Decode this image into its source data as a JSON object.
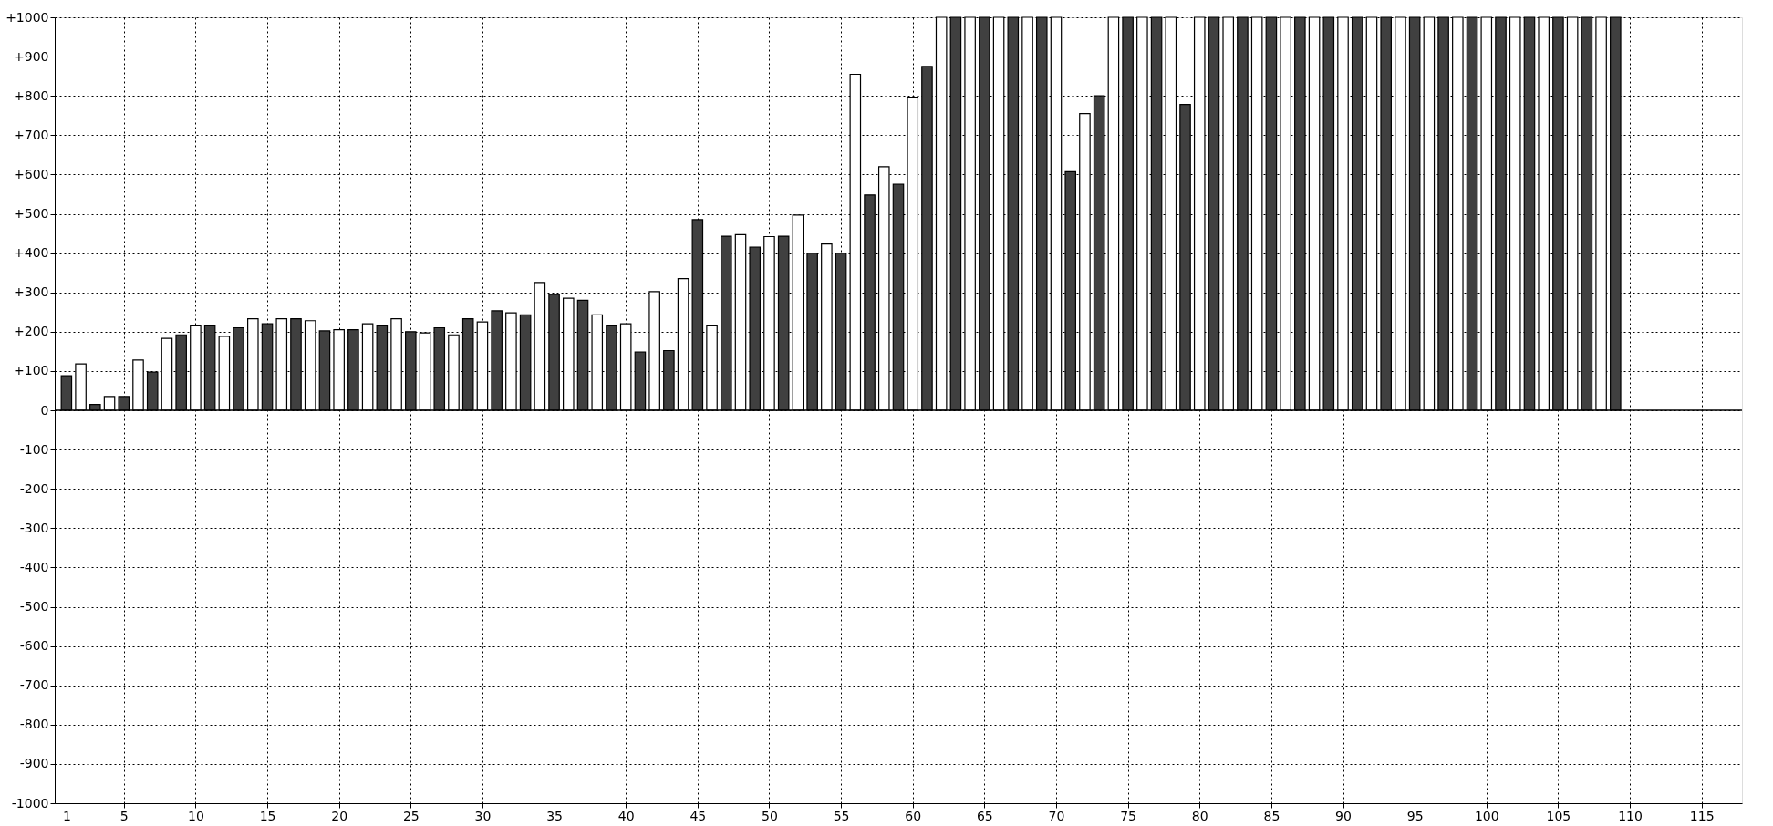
{
  "chart_data": {
    "type": "bar",
    "x": [
      1,
      2,
      3,
      4,
      5,
      6,
      7,
      8,
      9,
      10,
      11,
      12,
      13,
      14,
      15,
      16,
      17,
      18,
      19,
      20,
      21,
      22,
      23,
      24,
      25,
      26,
      27,
      28,
      29,
      30,
      31,
      32,
      33,
      34,
      35,
      36,
      37,
      38,
      39,
      40,
      41,
      42,
      43,
      44,
      45,
      46,
      47,
      48,
      49,
      50,
      51,
      52,
      53,
      54,
      55,
      56,
      57,
      58,
      59,
      60,
      61,
      62,
      63,
      64,
      65,
      66,
      67,
      68,
      69,
      70,
      71,
      72,
      73,
      74,
      75,
      76,
      77,
      78,
      79,
      80,
      81,
      82,
      83,
      84,
      85,
      86,
      87,
      88,
      89,
      90,
      91,
      92,
      93,
      94,
      95,
      96,
      97,
      98,
      99,
      100,
      101,
      102,
      103,
      104,
      105,
      106,
      107,
      108,
      109
    ],
    "values": [
      88,
      118,
      15,
      35,
      35,
      128,
      97,
      183,
      192,
      215,
      215,
      188,
      210,
      233,
      220,
      233,
      233,
      228,
      202,
      205,
      205,
      220,
      215,
      233,
      200,
      197,
      210,
      192,
      233,
      225,
      253,
      248,
      243,
      325,
      295,
      285,
      280,
      243,
      215,
      220,
      148,
      302,
      152,
      335,
      485,
      215,
      443,
      447,
      415,
      442,
      443,
      497,
      400,
      423,
      400,
      855,
      548,
      620,
      575,
      797,
      875,
      1000,
      1000,
      1000,
      1000,
      1000,
      1000,
      1000,
      1000,
      1000,
      607,
      755,
      800,
      1000,
      1000,
      1000,
      1000,
      1000,
      778,
      1000,
      1000,
      1000,
      1000,
      1000,
      1000,
      1000,
      1000,
      1000,
      1000,
      1000,
      1000,
      1000,
      1000,
      1000,
      1000,
      1000,
      1000,
      1000,
      1000,
      1000,
      1000,
      1000,
      1000,
      1000,
      1000,
      1000,
      1000,
      1000,
      1000
    ],
    "colors": [
      "#404040",
      "#ffffff",
      "#404040",
      "#ffffff",
      "#404040",
      "#ffffff",
      "#404040",
      "#ffffff",
      "#404040",
      "#ffffff",
      "#404040",
      "#ffffff",
      "#404040",
      "#ffffff",
      "#404040",
      "#ffffff",
      "#404040",
      "#ffffff",
      "#404040",
      "#ffffff",
      "#404040",
      "#ffffff",
      "#404040",
      "#ffffff",
      "#404040",
      "#ffffff",
      "#404040",
      "#ffffff",
      "#404040",
      "#ffffff",
      "#404040",
      "#ffffff",
      "#404040",
      "#ffffff",
      "#404040",
      "#ffffff",
      "#404040",
      "#ffffff",
      "#404040",
      "#ffffff",
      "#404040",
      "#ffffff",
      "#404040",
      "#ffffff",
      "#404040",
      "#ffffff",
      "#404040",
      "#ffffff",
      "#404040",
      "#ffffff",
      "#404040",
      "#ffffff",
      "#404040",
      "#ffffff",
      "#404040",
      "#ffffff",
      "#404040",
      "#ffffff",
      "#404040",
      "#ffffff",
      "#404040",
      "#ffffff",
      "#404040",
      "#ffffff",
      "#404040",
      "#ffffff",
      "#404040",
      "#ffffff",
      "#404040",
      "#ffffff",
      "#404040",
      "#ffffff",
      "#404040",
      "#ffffff",
      "#404040",
      "#ffffff",
      "#404040",
      "#ffffff",
      "#404040",
      "#ffffff",
      "#404040",
      "#ffffff",
      "#404040",
      "#ffffff",
      "#404040",
      "#ffffff",
      "#404040",
      "#ffffff",
      "#404040",
      "#ffffff",
      "#404040",
      "#ffffff",
      "#404040",
      "#ffffff",
      "#404040",
      "#ffffff",
      "#404040",
      "#ffffff",
      "#404040",
      "#ffffff",
      "#404040",
      "#ffffff",
      "#404040",
      "#ffffff",
      "#404040",
      "#ffffff",
      "#404040",
      "#ffffff",
      "#404040"
    ],
    "xlim": [
      0.5,
      117.5
    ],
    "xticks": [
      1,
      5,
      10,
      15,
      20,
      25,
      30,
      35,
      40,
      45,
      50,
      55,
      60,
      65,
      70,
      75,
      80,
      85,
      90,
      95,
      100,
      105,
      110,
      115
    ],
    "ylim": [
      -1000,
      1000
    ],
    "yticks": [
      -1000,
      -900,
      -800,
      -700,
      -600,
      -500,
      -400,
      -300,
      -200,
      -100,
      0,
      {
        "value": 100,
        "label": "+100"
      },
      {
        "value": 200,
        "label": "+200"
      },
      {
        "value": 300,
        "label": "+300"
      },
      {
        "value": 400,
        "label": "+400"
      },
      {
        "value": 500,
        "label": "+500"
      },
      {
        "value": 600,
        "label": "+600"
      },
      {
        "value": 700,
        "label": "+700"
      },
      {
        "value": 800,
        "label": "+800"
      },
      {
        "value": 900,
        "label": "+900"
      },
      {
        "value": 1000,
        "label": "+1000"
      }
    ],
    "ref_lines": [
      {
        "axis": "y",
        "value": 0,
        "color": "#000000"
      }
    ],
    "grid": true
  }
}
